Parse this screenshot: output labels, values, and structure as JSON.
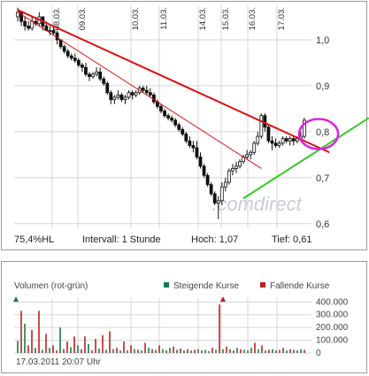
{
  "info": {
    "label": "75,4%HL",
    "interval": "Intervall: 1 Stunde",
    "high": "Hoch:  1,07",
    "low": "Tief:  0,61"
  },
  "watermark": ".comdirect",
  "volume_header": {
    "title": "Volumen (rot-grün)",
    "rising": "Steigende Kurse",
    "falling": "Fallende Kurse"
  },
  "timestamp": "17.03.2011 20:07 Uhr",
  "colors": {
    "rising": "#1a7a4a",
    "falling": "#bb2222",
    "trend_down": "#dd1111",
    "trend_up": "#33cc22",
    "highlight": "#dd22dd",
    "grid": "#d6d6d6"
  },
  "chart_data": [
    {
      "type": "candlestick",
      "x_labels": [
        "08.03.",
        "09.03.",
        "10.03.",
        "11.03.",
        "14.03.",
        "15.03.",
        "16.03.",
        "17.03."
      ],
      "y_ticks": [
        "1,0",
        "0,9",
        "0,8",
        "0,7",
        "0,6"
      ],
      "ylim": [
        0.59,
        1.075
      ],
      "grid": true,
      "candles": [
        [
          1.05,
          1.07,
          1.04,
          1.06
        ],
        [
          1.06,
          1.06,
          1.03,
          1.04
        ],
        [
          1.04,
          1.05,
          1.02,
          1.03
        ],
        [
          1.03,
          1.04,
          1.02,
          1.025
        ],
        [
          1.025,
          1.05,
          1.02,
          1.04
        ],
        [
          1.04,
          1.05,
          1.03,
          1.035
        ],
        [
          1.035,
          1.06,
          1.03,
          1.05
        ],
        [
          1.05,
          1.05,
          1.02,
          1.03
        ],
        [
          1.03,
          1.04,
          1.02,
          1.02
        ],
        [
          1.02,
          1.03,
          1.01,
          1.02
        ],
        [
          1.02,
          1.03,
          1.01,
          1.015
        ],
        [
          1.015,
          1.02,
          0.99,
          1.0
        ],
        [
          1.0,
          1.0,
          0.98,
          0.985
        ],
        [
          0.985,
          0.99,
          0.97,
          0.975
        ],
        [
          0.975,
          0.98,
          0.96,
          0.965
        ],
        [
          0.965,
          0.97,
          0.955,
          0.96
        ],
        [
          0.96,
          0.97,
          0.95,
          0.955
        ],
        [
          0.955,
          0.96,
          0.94,
          0.945
        ],
        [
          0.945,
          0.95,
          0.93,
          0.94
        ],
        [
          0.94,
          0.95,
          0.92,
          0.925
        ],
        [
          0.925,
          0.93,
          0.91,
          0.92
        ],
        [
          0.92,
          0.93,
          0.915,
          0.925
        ],
        [
          0.925,
          0.94,
          0.92,
          0.93
        ],
        [
          0.93,
          0.94,
          0.91,
          0.915
        ],
        [
          0.915,
          0.92,
          0.9,
          0.905
        ],
        [
          0.905,
          0.91,
          0.88,
          0.885
        ],
        [
          0.885,
          0.89,
          0.86,
          0.87
        ],
        [
          0.87,
          0.88,
          0.86,
          0.875
        ],
        [
          0.875,
          0.89,
          0.87,
          0.88
        ],
        [
          0.88,
          0.885,
          0.865,
          0.87
        ],
        [
          0.87,
          0.88,
          0.86,
          0.875
        ],
        [
          0.875,
          0.89,
          0.87,
          0.885
        ],
        [
          0.885,
          0.89,
          0.87,
          0.88
        ],
        [
          0.88,
          0.89,
          0.875,
          0.885
        ],
        [
          0.885,
          0.9,
          0.88,
          0.895
        ],
        [
          0.895,
          0.9,
          0.885,
          0.89
        ],
        [
          0.89,
          0.9,
          0.88,
          0.885
        ],
        [
          0.885,
          0.895,
          0.875,
          0.88
        ],
        [
          0.88,
          0.885,
          0.86,
          0.865
        ],
        [
          0.865,
          0.87,
          0.85,
          0.855
        ],
        [
          0.855,
          0.86,
          0.84,
          0.845
        ],
        [
          0.845,
          0.85,
          0.83,
          0.835
        ],
        [
          0.835,
          0.84,
          0.825,
          0.83
        ],
        [
          0.83,
          0.835,
          0.82,
          0.825
        ],
        [
          0.825,
          0.83,
          0.81,
          0.815
        ],
        [
          0.815,
          0.82,
          0.8,
          0.805
        ],
        [
          0.805,
          0.81,
          0.79,
          0.795
        ],
        [
          0.795,
          0.8,
          0.775,
          0.78
        ],
        [
          0.78,
          0.79,
          0.765,
          0.77
        ],
        [
          0.77,
          0.78,
          0.755,
          0.765
        ],
        [
          0.765,
          0.78,
          0.74,
          0.745
        ],
        [
          0.745,
          0.755,
          0.72,
          0.725
        ],
        [
          0.725,
          0.73,
          0.7,
          0.705
        ],
        [
          0.705,
          0.71,
          0.68,
          0.685
        ],
        [
          0.685,
          0.69,
          0.66,
          0.665
        ],
        [
          0.665,
          0.67,
          0.64,
          0.645
        ],
        [
          0.645,
          0.66,
          0.61,
          0.65
        ],
        [
          0.65,
          0.69,
          0.64,
          0.68
        ],
        [
          0.68,
          0.7,
          0.67,
          0.69
        ],
        [
          0.69,
          0.72,
          0.685,
          0.715
        ],
        [
          0.715,
          0.73,
          0.705,
          0.72
        ],
        [
          0.72,
          0.735,
          0.71,
          0.725
        ],
        [
          0.725,
          0.74,
          0.72,
          0.735
        ],
        [
          0.735,
          0.75,
          0.73,
          0.745
        ],
        [
          0.745,
          0.76,
          0.74,
          0.75
        ],
        [
          0.75,
          0.76,
          0.74,
          0.755
        ],
        [
          0.755,
          0.78,
          0.75,
          0.775
        ],
        [
          0.775,
          0.8,
          0.77,
          0.79
        ],
        [
          0.79,
          0.84,
          0.785,
          0.835
        ],
        [
          0.835,
          0.84,
          0.8,
          0.81
        ],
        [
          0.81,
          0.815,
          0.775,
          0.78
        ],
        [
          0.78,
          0.79,
          0.76,
          0.775
        ],
        [
          0.775,
          0.785,
          0.765,
          0.77
        ],
        [
          0.77,
          0.78,
          0.765,
          0.775
        ],
        [
          0.775,
          0.79,
          0.77,
          0.785
        ],
        [
          0.785,
          0.79,
          0.775,
          0.78
        ],
        [
          0.78,
          0.79,
          0.77,
          0.785
        ],
        [
          0.785,
          0.79,
          0.77,
          0.78
        ],
        [
          0.78,
          0.79,
          0.775,
          0.785
        ],
        [
          0.785,
          0.8,
          0.78,
          0.79
        ],
        [
          0.79,
          0.83,
          0.785,
          0.825
        ]
      ],
      "trendlines": [
        {
          "color": "trend_down",
          "from": [
            0,
            1.065
          ],
          "to": [
            87,
            0.755
          ],
          "width": 2
        },
        {
          "color": "trend_down",
          "from": [
            0,
            1.06
          ],
          "to": [
            68,
            0.72
          ],
          "width": 1
        },
        {
          "color": "trend_up",
          "from": [
            63,
            0.655
          ],
          "to": [
            98,
            0.83
          ],
          "width": 2
        }
      ],
      "highlight": {
        "x": 84,
        "y": 0.795
      }
    },
    {
      "type": "bar",
      "title": "Volumen (rot-grün)",
      "y_ticks": [
        "400.000",
        "300.000",
        "200.000",
        "100.000",
        "0"
      ],
      "ylim": [
        0,
        430000
      ],
      "series": [
        {
          "name": "Steigende Kurse",
          "color": "rising"
        },
        {
          "name": "Fallende Kurse",
          "color": "falling"
        }
      ],
      "values": [
        [
          1,
          95000
        ],
        [
          -1,
          330000
        ],
        [
          1,
          230000
        ],
        [
          -1,
          60000
        ],
        [
          -1,
          180000
        ],
        [
          1,
          40000
        ],
        [
          -1,
          330000
        ],
        [
          1,
          25000
        ],
        [
          -1,
          150000
        ],
        [
          1,
          40000
        ],
        [
          -1,
          60000
        ],
        [
          -1,
          20000
        ],
        [
          1,
          200000
        ],
        [
          -1,
          30000
        ],
        [
          -1,
          90000
        ],
        [
          1,
          45000
        ],
        [
          -1,
          130000
        ],
        [
          1,
          60000
        ],
        [
          -1,
          30000
        ],
        [
          -1,
          130000
        ],
        [
          1,
          70000
        ],
        [
          -1,
          20000
        ],
        [
          -1,
          110000
        ],
        [
          1,
          35000
        ],
        [
          -1,
          140000
        ],
        [
          1,
          25000
        ],
        [
          -1,
          170000
        ],
        [
          1,
          30000
        ],
        [
          -1,
          40000
        ],
        [
          1,
          20000
        ],
        [
          -1,
          90000
        ],
        [
          1,
          20000
        ],
        [
          -1,
          60000
        ],
        [
          1,
          30000
        ],
        [
          -1,
          25000
        ],
        [
          1,
          20000
        ],
        [
          -1,
          80000
        ],
        [
          1,
          40000
        ],
        [
          -1,
          30000
        ],
        [
          1,
          25000
        ],
        [
          -1,
          60000
        ],
        [
          1,
          30000
        ],
        [
          -1,
          20000
        ],
        [
          1,
          40000
        ],
        [
          -1,
          50000
        ],
        [
          1,
          25000
        ],
        [
          -1,
          35000
        ],
        [
          1,
          20000
        ],
        [
          -1,
          30000
        ],
        [
          1,
          20000
        ],
        [
          -1,
          25000
        ],
        [
          1,
          30000
        ],
        [
          -1,
          20000
        ],
        [
          1,
          25000
        ],
        [
          1,
          15000
        ],
        [
          -1,
          40000
        ],
        [
          1,
          25000
        ],
        [
          -1,
          380000
        ],
        [
          1,
          30000
        ],
        [
          -1,
          50000
        ],
        [
          1,
          30000
        ],
        [
          -1,
          20000
        ],
        [
          1,
          40000
        ],
        [
          -1,
          30000
        ],
        [
          1,
          25000
        ],
        [
          -1,
          20000
        ],
        [
          1,
          40000
        ],
        [
          -1,
          80000
        ],
        [
          1,
          30000
        ],
        [
          -1,
          60000
        ],
        [
          1,
          20000
        ],
        [
          -1,
          25000
        ],
        [
          1,
          30000
        ],
        [
          -1,
          20000
        ],
        [
          1,
          25000
        ],
        [
          -1,
          40000
        ],
        [
          1,
          20000
        ],
        [
          -1,
          30000
        ],
        [
          1,
          25000
        ],
        [
          -1,
          20000
        ],
        [
          1,
          30000
        ],
        [
          -1,
          25000
        ]
      ]
    }
  ]
}
